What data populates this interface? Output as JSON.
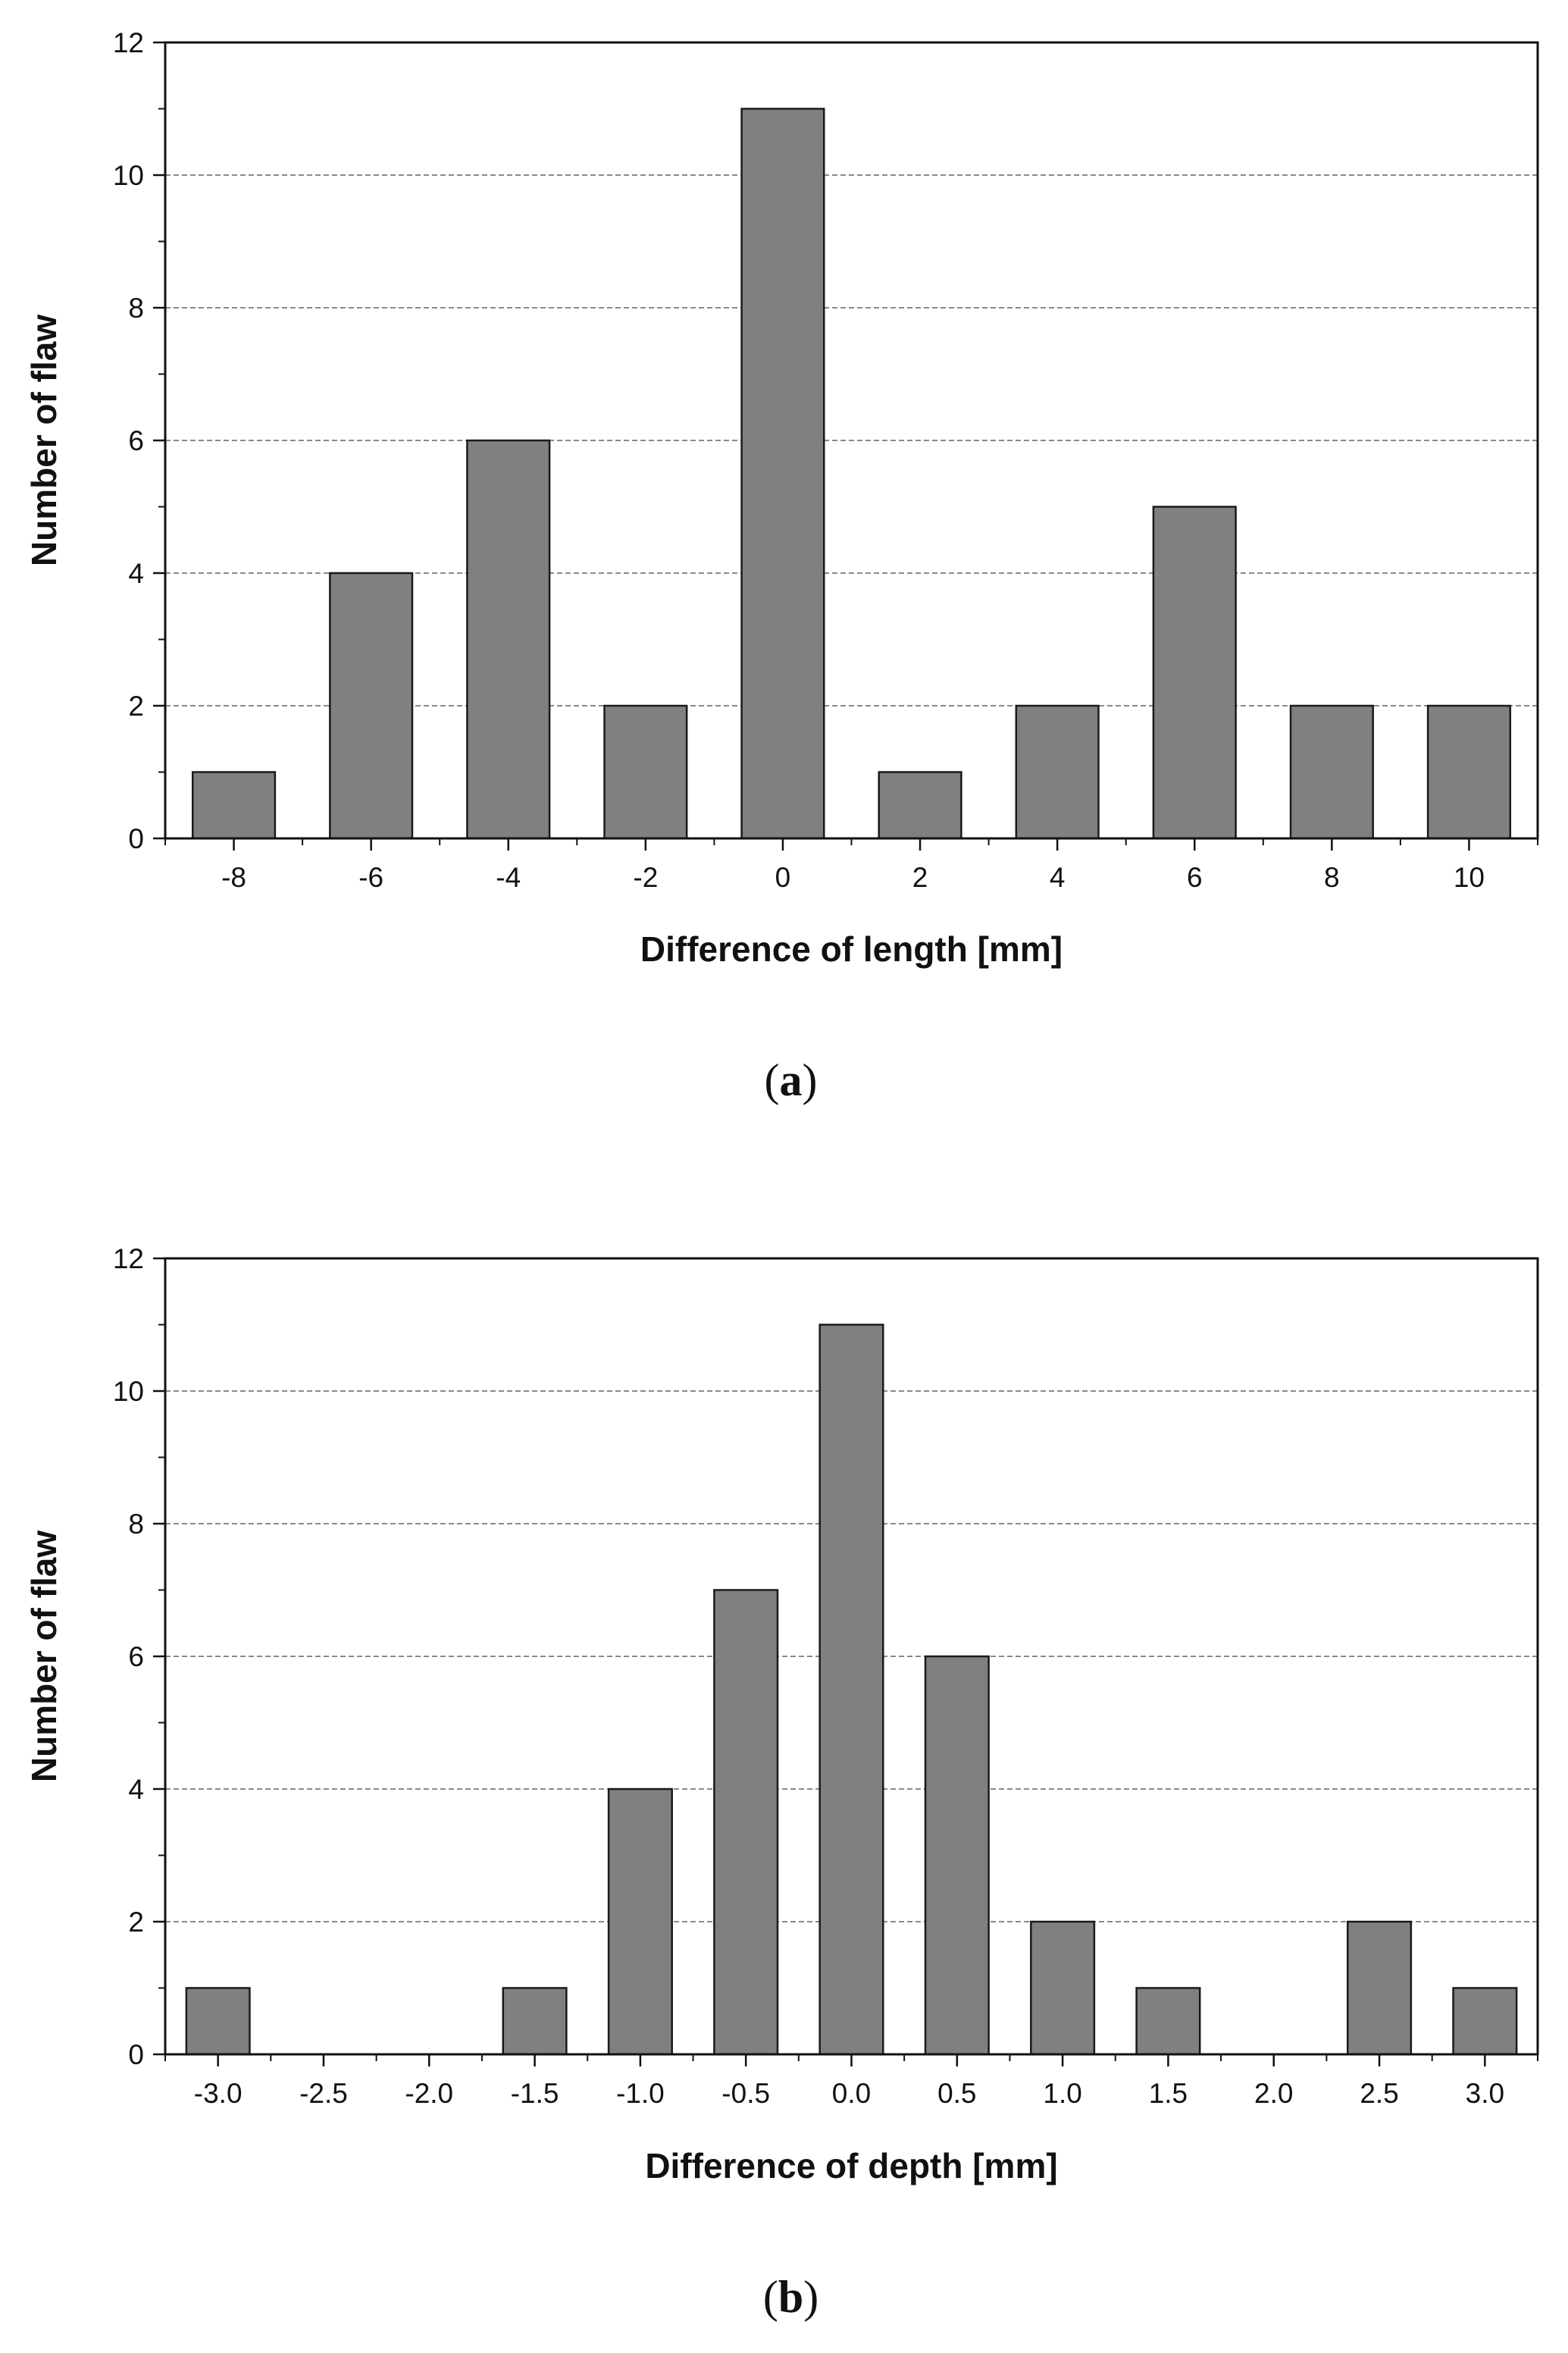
{
  "colors": {
    "bar_fill": "#808080",
    "bar_stroke": "#1a1a1a",
    "grid": "#8a8a8a",
    "axis": "#111111",
    "background": "#ffffff"
  },
  "chart_data": [
    {
      "type": "bar",
      "panel_label": "a",
      "title": "",
      "xlabel": "Difference of length [mm]",
      "ylabel": "Number of flaw",
      "categories": [
        "-8",
        "-6",
        "-4",
        "-2",
        "0",
        "2",
        "4",
        "6",
        "8",
        "10"
      ],
      "x_values": [
        -8,
        -6,
        -4,
        -2,
        0,
        2,
        4,
        6,
        8,
        10
      ],
      "values": [
        1,
        4,
        6,
        2,
        11,
        1,
        2,
        5,
        2,
        2
      ],
      "xlim": [
        -9,
        11
      ],
      "ylim": [
        0,
        12
      ],
      "xticks": [
        -8,
        -6,
        -4,
        -2,
        0,
        2,
        4,
        6,
        8,
        10
      ],
      "xtick_labels": [
        "-8",
        "-6",
        "-4",
        "-2",
        "0",
        "2",
        "4",
        "6",
        "8",
        "10"
      ],
      "yticks": [
        0,
        2,
        4,
        6,
        8,
        10,
        12
      ],
      "ytick_labels": [
        "0",
        "2",
        "4",
        "6",
        "8",
        "10",
        "12"
      ],
      "grid": "horizontal dashed",
      "legend": "none"
    },
    {
      "type": "bar",
      "panel_label": "b",
      "title": "",
      "xlabel": "Difference of depth [mm]",
      "ylabel": "Number of flaw",
      "categories": [
        "-3.0",
        "-2.5",
        "-2.0",
        "-1.5",
        "-1.0",
        "-0.5",
        "0.0",
        "0.5",
        "1.0",
        "1.5",
        "2.0",
        "2.5",
        "3.0"
      ],
      "x_values": [
        -3.0,
        -2.5,
        -2.0,
        -1.5,
        -1.0,
        -0.5,
        0.0,
        0.5,
        1.0,
        1.5,
        2.0,
        2.5,
        3.0
      ],
      "values": [
        1,
        0,
        0,
        1,
        4,
        7,
        11,
        6,
        2,
        1,
        0,
        2,
        1
      ],
      "xlim": [
        -3.25,
        3.25
      ],
      "ylim": [
        0,
        12
      ],
      "xticks": [
        -3.0,
        -2.5,
        -2.0,
        -1.5,
        -1.0,
        -0.5,
        0.0,
        0.5,
        1.0,
        1.5,
        2.0,
        2.5,
        3.0
      ],
      "xtick_labels": [
        "-3.0",
        "-2.5",
        "-2.0",
        "-1.5",
        "-1.0",
        "-0.5",
        "0.0",
        "0.5",
        "1.0",
        "1.5",
        "2.0",
        "2.5",
        "3.0"
      ],
      "yticks": [
        0,
        2,
        4,
        6,
        8,
        10,
        12
      ],
      "ytick_labels": [
        "0",
        "2",
        "4",
        "6",
        "8",
        "10",
        "12"
      ],
      "grid": "horizontal dashed",
      "legend": "none"
    }
  ]
}
